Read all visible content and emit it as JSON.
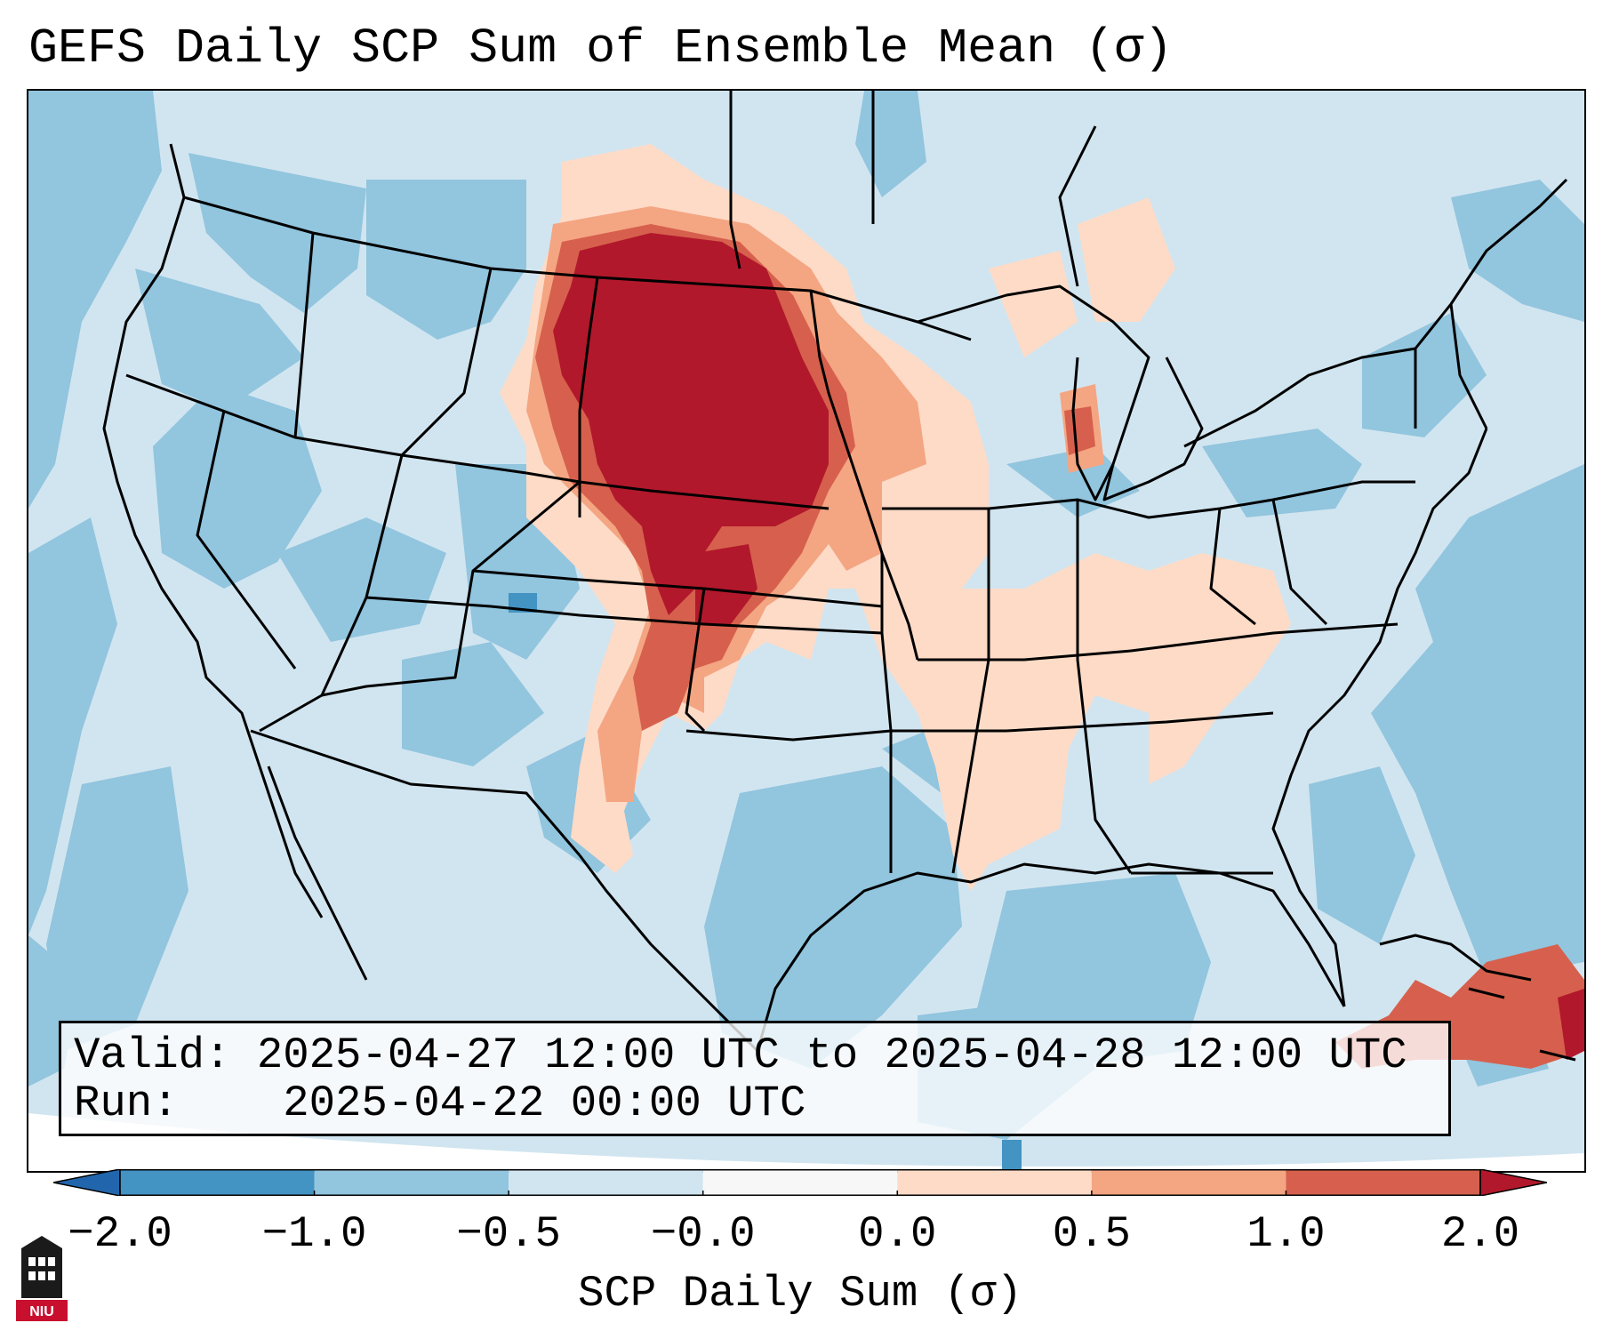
{
  "title": "GEFS Daily SCP Sum of Ensemble Mean (σ)",
  "info": {
    "valid_label": "Valid:",
    "valid_value": "2025-04-27 12:00 UTC to 2025-04-28 12:00 UTC",
    "run_label": "Run:",
    "run_value": "2025-04-22 00:00 UTC"
  },
  "colorbar": {
    "label": "SCP Daily Sum (σ)",
    "tick_labels": [
      "−2.0",
      "−1.0",
      "−0.5",
      "−0.0",
      "0.0",
      "0.5",
      "1.0",
      "2.0"
    ],
    "bins": [
      {
        "range": "< -2.0",
        "color": "#2166ac"
      },
      {
        "range": "-2.0 to -1.0",
        "color": "#4393c3"
      },
      {
        "range": "-1.0 to -0.5",
        "color": "#92c5de"
      },
      {
        "range": "-0.5 to -0.0",
        "color": "#d1e5f0"
      },
      {
        "range": "-0.0 to 0.0",
        "color": "#f7f7f7"
      },
      {
        "range": "0.0 to 0.5",
        "color": "#fddbc7"
      },
      {
        "range": "0.5 to 1.0",
        "color": "#f4a582"
      },
      {
        "range": "1.0 to 2.0",
        "color": "#d6604d"
      },
      {
        "range": "> 2.0",
        "color": "#b2182b"
      }
    ]
  },
  "map": {
    "region": "CONUS",
    "max_anomaly_areas": [
      "South Dakota",
      "Nebraska",
      "Kansas",
      "Oklahoma"
    ],
    "background_color": "#d1e5f0"
  },
  "logo": {
    "text": "NIU",
    "icon": "university-tower-icon"
  }
}
